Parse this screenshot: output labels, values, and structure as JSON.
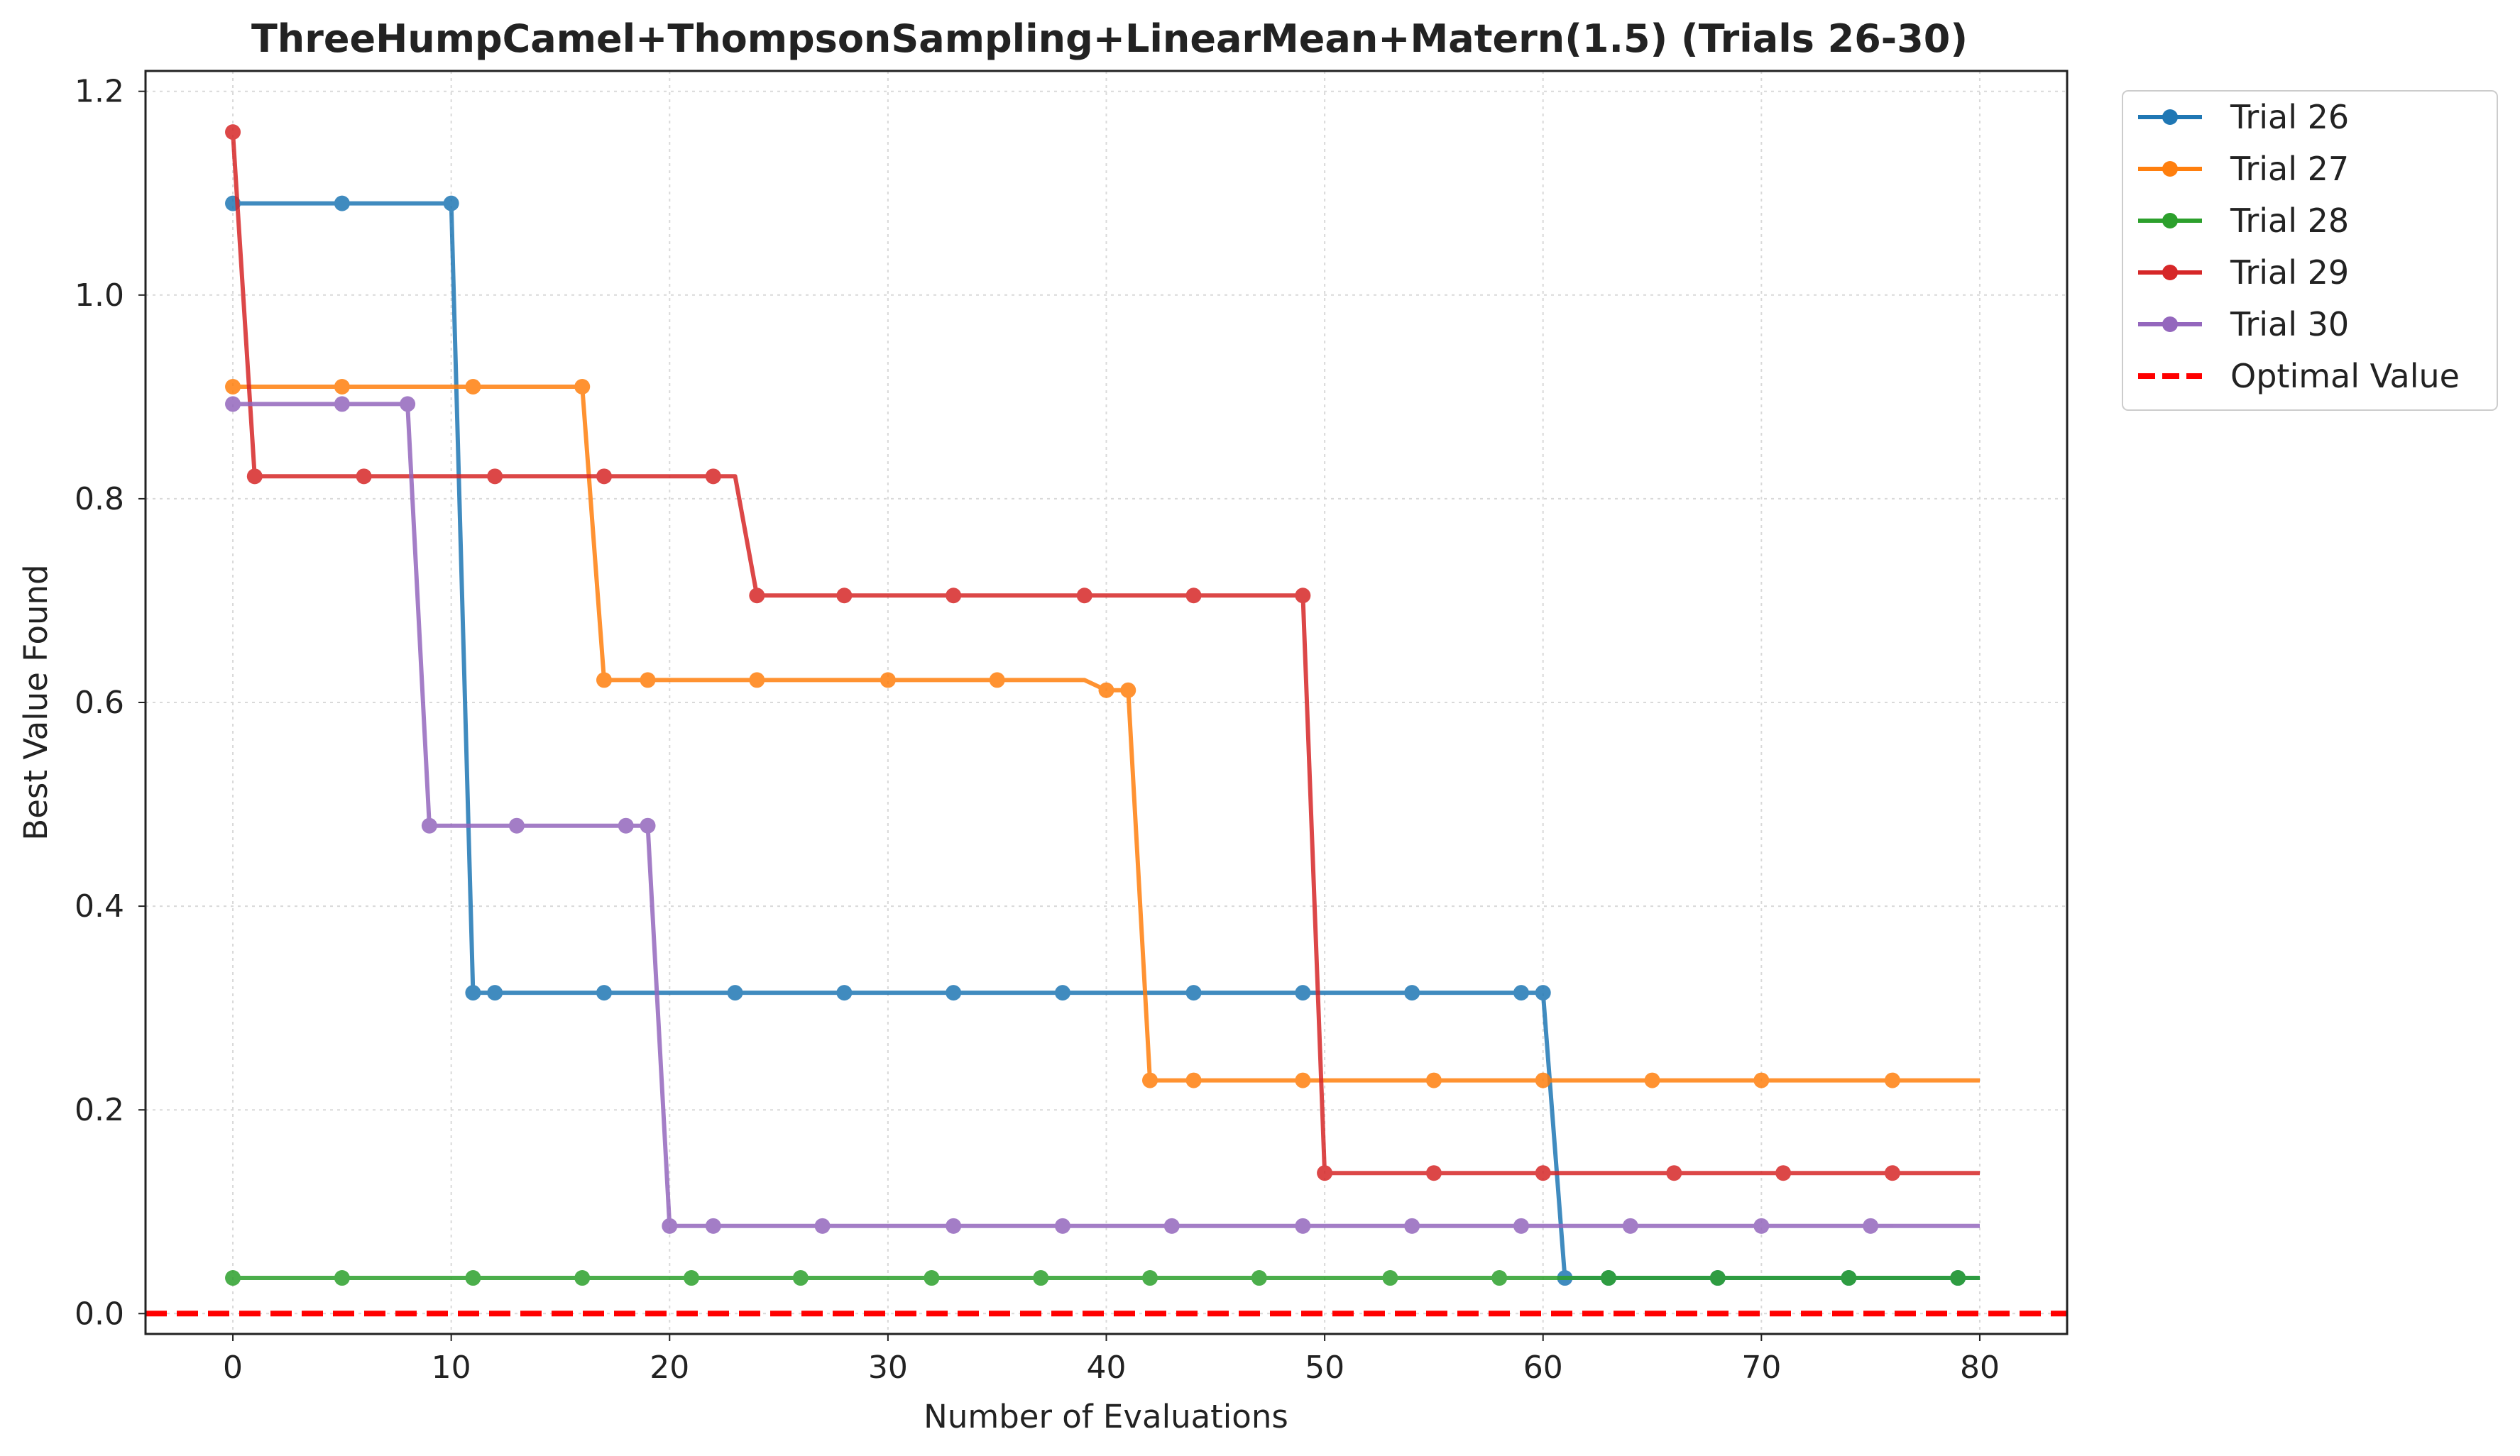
{
  "chart_data": {
    "type": "line",
    "title": "ThreeHumpCamel+ThompsonSampling+LinearMean+Matern(1.5) (Trials 26-30)",
    "xlabel": "Number of Evaluations",
    "ylabel": "Best Value Found",
    "xlim": [
      -4,
      84
    ],
    "ylim": [
      -0.02,
      1.22
    ],
    "xticks": [
      0,
      10,
      20,
      30,
      40,
      50,
      60,
      70,
      80
    ],
    "yticks": [
      0.0,
      0.2,
      0.4,
      0.6,
      0.8,
      1.0,
      1.2
    ],
    "xtick_labels": [
      "0",
      "10",
      "20",
      "30",
      "40",
      "50",
      "60",
      "70",
      "80"
    ],
    "ytick_labels": [
      "0.0",
      "0.2",
      "0.4",
      "0.6",
      "0.8",
      "1.0",
      "1.2"
    ],
    "grid": true,
    "legend_position": "outside-top-right",
    "series": [
      {
        "name": "Trial 26",
        "color": "#1f77b4",
        "points": [
          [
            0,
            1.09
          ],
          [
            10,
            1.09
          ],
          [
            11,
            0.315
          ],
          [
            60,
            0.315
          ],
          [
            61,
            0.035
          ],
          [
            80,
            0.035
          ]
        ],
        "markers": [
          0,
          5,
          10,
          11,
          12,
          17,
          23,
          28,
          33,
          38,
          44,
          49,
          54,
          59,
          60,
          61,
          63,
          68,
          74,
          79
        ]
      },
      {
        "name": "Trial 27",
        "color": "#ff7f0e",
        "points": [
          [
            0,
            0.91
          ],
          [
            16,
            0.91
          ],
          [
            17,
            0.622
          ],
          [
            39,
            0.622
          ],
          [
            40,
            0.612
          ],
          [
            41,
            0.612
          ],
          [
            42,
            0.229
          ],
          [
            80,
            0.229
          ]
        ],
        "markers": [
          0,
          5,
          11,
          16,
          17,
          19,
          24,
          30,
          35,
          40,
          41,
          42,
          44,
          49,
          55,
          60,
          65,
          70,
          76
        ]
      },
      {
        "name": "Trial 28",
        "color": "#2ca02c",
        "points": [
          [
            0,
            0.035
          ],
          [
            80,
            0.035
          ]
        ],
        "markers": [
          0,
          5,
          11,
          16,
          21,
          26,
          32,
          37,
          42,
          47,
          53,
          58,
          63,
          68,
          74,
          79
        ]
      },
      {
        "name": "Trial 29",
        "color": "#d62728",
        "points": [
          [
            0,
            1.16
          ],
          [
            1,
            0.822
          ],
          [
            23,
            0.822
          ],
          [
            24,
            0.705
          ],
          [
            49,
            0.705
          ],
          [
            50,
            0.138
          ],
          [
            80,
            0.138
          ]
        ],
        "markers": [
          0,
          1,
          6,
          12,
          17,
          22,
          24,
          28,
          33,
          39,
          44,
          49,
          50,
          55,
          60,
          66,
          71,
          76
        ]
      },
      {
        "name": "Trial 30",
        "color": "#9467bd",
        "points": [
          [
            0,
            0.893
          ],
          [
            8,
            0.893
          ],
          [
            9,
            0.479
          ],
          [
            19,
            0.479
          ],
          [
            20,
            0.086
          ],
          [
            80,
            0.086
          ]
        ],
        "markers": [
          0,
          5,
          8,
          9,
          13,
          18,
          19,
          20,
          22,
          27,
          33,
          38,
          43,
          49,
          54,
          59,
          64,
          70,
          75
        ]
      }
    ],
    "reference_line": {
      "name": "Optimal Value",
      "value": 0.0,
      "color": "#ff0000",
      "style": "dashed"
    }
  }
}
